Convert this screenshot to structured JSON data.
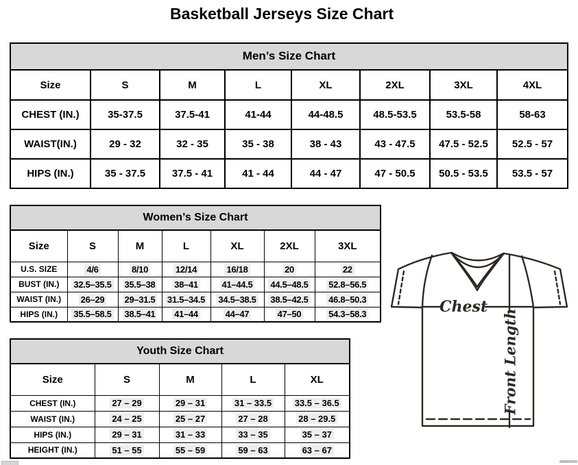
{
  "page_title": "Basketball Jerseys Size Chart",
  "colors": {
    "band_background": "#d8d8d8",
    "table_border": "#000000",
    "diagram_stroke": "#2e2823"
  },
  "mens_chart": {
    "title": "Men’s Size Chart",
    "columns": [
      "Size",
      "S",
      "M",
      "L",
      "XL",
      "2XL",
      "3XL",
      "4XL"
    ],
    "rows": [
      {
        "label": "CHEST (IN.)",
        "values": [
          "35-37.5",
          "37.5-41",
          "41-44",
          "44-48.5",
          "48.5-53.5",
          "53.5-58",
          "58-63"
        ]
      },
      {
        "label": "WAIST(IN.)",
        "values": [
          "29 - 32",
          "32 - 35",
          "35 - 38",
          "38 - 43",
          "43 - 47.5",
          "47.5 - 52.5",
          "52.5 - 57"
        ]
      },
      {
        "label": "HIPS (IN.)",
        "values": [
          "35 - 37.5",
          "37.5 - 41",
          "41 - 44",
          "44 - 47",
          "47 - 50.5",
          "50.5 - 53.5",
          "53.5 - 57"
        ]
      }
    ]
  },
  "womens_chart": {
    "title": "Women’s Size Chart",
    "columns": [
      "Size",
      "S",
      "M",
      "L",
      "XL",
      "2XL",
      "3XL"
    ],
    "rows": [
      {
        "label": "U.S. SIZE",
        "values": [
          "4/6",
          "8/10",
          "12/14",
          "16/18",
          "20",
          "22"
        ]
      },
      {
        "label": "BUST (IN.)",
        "values": [
          "32.5–35.5",
          "35.5–38",
          "38–41",
          "41–44.5",
          "44.5–48.5",
          "52.8–56.5"
        ]
      },
      {
        "label": "WAIST (IN.)",
        "values": [
          "26–29",
          "29–31.5",
          "31.5–34.5",
          "34.5–38.5",
          "38.5–42.5",
          "46.8–50.3"
        ]
      },
      {
        "label": "HIPS (IN.)",
        "values": [
          "35.5–58.5",
          "38.5–41",
          "41–44",
          "44–47",
          "47–50",
          "54.3–58.3"
        ]
      }
    ]
  },
  "youth_chart": {
    "title": "Youth Size Chart",
    "columns": [
      "Size",
      "S",
      "M",
      "L",
      "XL"
    ],
    "rows": [
      {
        "label": "CHEST (IN.)",
        "values": [
          "27 – 29",
          "29 – 31",
          "31 – 33.5",
          "33.5 – 36.5"
        ]
      },
      {
        "label": "WAIST (IN.)",
        "values": [
          "24 – 25",
          "25 – 27",
          "27 – 28",
          "28 – 29.5"
        ]
      },
      {
        "label": "HIPS (IN.)",
        "values": [
          "29 – 31",
          "31 – 33",
          "33 – 35",
          "35 – 37"
        ]
      },
      {
        "label": "HEIGHT (IN.)",
        "values": [
          "51 – 55",
          "55 – 59",
          "59 – 63",
          "63 – 67"
        ]
      }
    ]
  },
  "diagram": {
    "chest_label": "Chest",
    "front_length_label": "Front Length"
  }
}
